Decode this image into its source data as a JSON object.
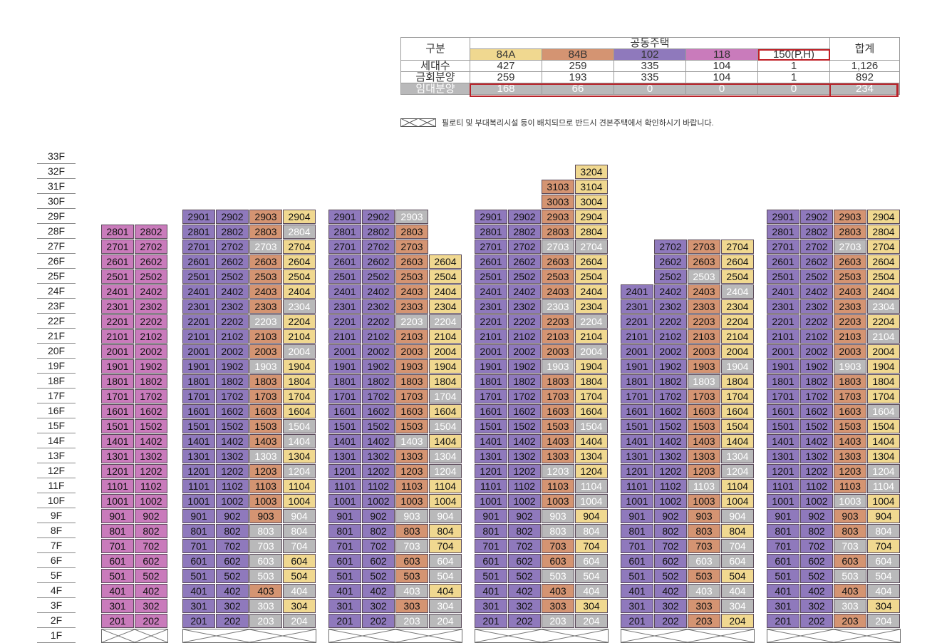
{
  "colors": {
    "t84A": "#f0d890",
    "t84B": "#d49472",
    "t102": "#8f79bc",
    "t118": "#c97bbb",
    "rental": "#b9b9ba",
    "highlight": "#c01f26"
  },
  "table": {
    "gubun": "구분",
    "group": "공동주택",
    "total": "합계",
    "types": [
      "84A",
      "84B",
      "102",
      "118",
      "150(P,H)"
    ],
    "rows": [
      {
        "label": "세대수",
        "values": [
          "427",
          "259",
          "335",
          "104",
          "1",
          "1,126"
        ]
      },
      {
        "label": "금회분양",
        "values": [
          "259",
          "193",
          "335",
          "104",
          "1",
          "892"
        ]
      },
      {
        "label": "임대분양",
        "values": [
          "168",
          "66",
          "0",
          "0",
          "0",
          "234"
        ]
      }
    ]
  },
  "legend": {
    "icon": "pilotis-crossed-box-icon",
    "text": "필로티 및 부대복리시설 등이 배치되므로 반드시 견본주택에서 확인하시기 바랍니다."
  },
  "floors": [
    "33F",
    "32F",
    "31F",
    "30F",
    "29F",
    "28F",
    "27F",
    "26F",
    "25F",
    "24F",
    "23F",
    "22F",
    "21F",
    "20F",
    "19F",
    "18F",
    "17F",
    "16F",
    "15F",
    "14F",
    "13F",
    "12F",
    "11F",
    "10F",
    "9F",
    "8F",
    "7F",
    "6F",
    "5F",
    "4F",
    "3F",
    "2F",
    "1F"
  ],
  "buildings": [
    {
      "top": 28,
      "types": [
        "118",
        "118"
      ],
      "rental": [
        [],
        []
      ]
    },
    {
      "top": 29,
      "types": [
        "102",
        "102",
        "84B",
        "84A"
      ],
      "rental": [
        [],
        [],
        [
          27,
          22,
          19,
          13,
          8,
          7,
          6,
          5,
          3,
          2
        ],
        [
          28,
          23,
          20,
          15,
          14,
          12,
          9,
          8,
          7,
          4,
          2
        ]
      ]
    },
    {
      "top": 29,
      "tops": [
        29,
        29,
        29,
        26
      ],
      "types": [
        "102",
        "102",
        "84B",
        "84A"
      ],
      "rental": [
        [],
        [],
        [
          29,
          22,
          14,
          9,
          7,
          4,
          2
        ],
        [
          22,
          17,
          15,
          13,
          12,
          9,
          6,
          5,
          3,
          2
        ]
      ]
    },
    {
      "tops": [
        29,
        29,
        32,
        32
      ],
      "bottoms": [
        2,
        2,
        2,
        2
      ],
      "types": [
        "102",
        "102",
        "84B",
        "84A"
      ],
      "rental": [
        [],
        [],
        [
          27,
          23,
          19,
          12,
          9,
          8,
          5,
          2
        ],
        [
          27,
          22,
          20,
          15,
          11,
          10,
          8,
          6,
          5,
          4,
          2
        ]
      ]
    },
    {
      "tops": [
        24,
        27,
        27,
        27
      ],
      "types": [
        "102",
        "102",
        "84B",
        "84A"
      ],
      "rental": [
        [],
        [],
        [
          25,
          18,
          11,
          6,
          4
        ],
        [
          24,
          19,
          13,
          12,
          9,
          7,
          6,
          4,
          3
        ]
      ]
    },
    {
      "top": 29,
      "types": [
        "102",
        "102",
        "84B",
        "84A"
      ],
      "rental": [
        [],
        [],
        [
          27,
          19,
          10,
          7,
          5,
          3
        ],
        [
          23,
          21,
          16,
          12,
          11,
          8,
          6,
          5,
          4,
          2
        ]
      ]
    }
  ],
  "special_units": [
    {
      "label": "3003",
      "type": "84B"
    },
    {
      "label": "3004",
      "type": "84A"
    },
    {
      "label": "3103",
      "type": "84B"
    },
    {
      "label": "3104",
      "type": "84A"
    },
    {
      "label": "3204",
      "type": "84A"
    }
  ]
}
